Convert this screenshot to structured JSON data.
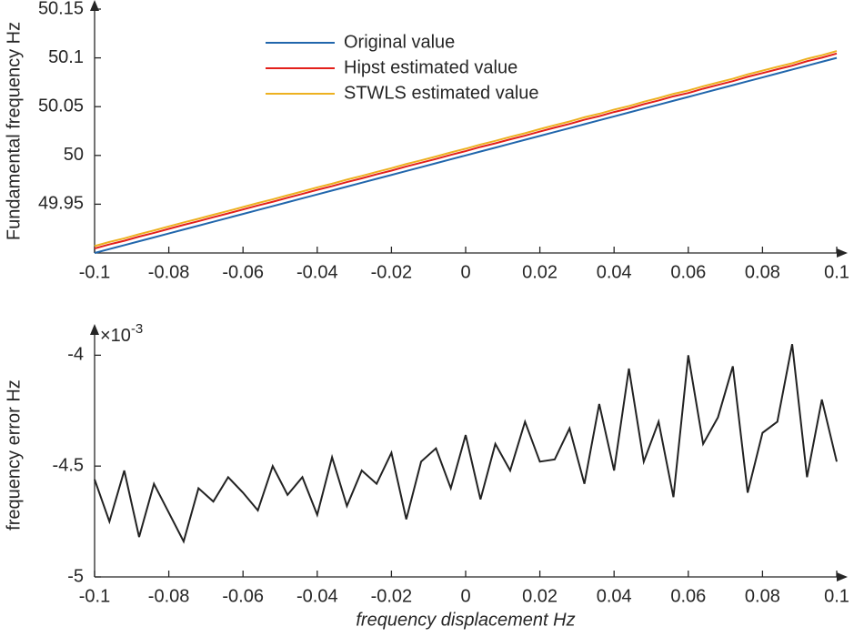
{
  "chart_data": [
    {
      "type": "line",
      "ylabel": "Fundamental frequency Hz",
      "x": [
        -0.1,
        -0.096,
        -0.092,
        -0.088,
        -0.084,
        -0.08,
        -0.076,
        -0.072,
        -0.068,
        -0.064,
        -0.06,
        -0.056,
        -0.052,
        -0.048,
        -0.044,
        -0.04,
        -0.036,
        -0.032,
        -0.028,
        -0.024,
        -0.02,
        -0.016,
        -0.012,
        -0.008,
        -0.004,
        0,
        0.004,
        0.008,
        0.012,
        0.016,
        0.02,
        0.024,
        0.028,
        0.032,
        0.036,
        0.04,
        0.044,
        0.048,
        0.052,
        0.056,
        0.06,
        0.064,
        0.068,
        0.072,
        0.076,
        0.08,
        0.084,
        0.088,
        0.092,
        0.096,
        0.1
      ],
      "series": [
        {
          "name": "Original value",
          "color": "#2166ac",
          "values": [
            49.9,
            49.904,
            49.908,
            49.912,
            49.916,
            49.92,
            49.924,
            49.928,
            49.932,
            49.936,
            49.94,
            49.944,
            49.948,
            49.952,
            49.956,
            49.96,
            49.964,
            49.968,
            49.972,
            49.976,
            49.98,
            49.984,
            49.988,
            49.992,
            49.996,
            50,
            50.004,
            50.008,
            50.012,
            50.016,
            50.02,
            50.024,
            50.028,
            50.032,
            50.036,
            50.04,
            50.044,
            50.048,
            50.052,
            50.056,
            50.06,
            50.064,
            50.068,
            50.072,
            50.076,
            50.08,
            50.084,
            50.088,
            50.092,
            50.096,
            50.1
          ]
        },
        {
          "name": "Hipst estimated value",
          "color": "#e3201b",
          "values": [
            49.9046,
            49.9088,
            49.9125,
            49.9168,
            49.9206,
            49.9247,
            49.9288,
            49.9326,
            49.9367,
            49.9406,
            49.9446,
            49.9487,
            49.9525,
            49.9566,
            49.9606,
            49.9647,
            49.9685,
            49.9727,
            49.9765,
            49.9806,
            49.9844,
            49.9887,
            49.9925,
            49.9964,
            50.0006,
            50.0044,
            50.0087,
            50.0124,
            50.0165,
            50.0203,
            50.0245,
            50.0285,
            50.0323,
            50.0366,
            50.0402,
            50.0445,
            50.0481,
            50.0525,
            50.0563,
            50.0606,
            50.064,
            50.0684,
            50.0723,
            50.0761,
            50.0806,
            50.0844,
            50.0883,
            50.092,
            50.0966,
            50.1002,
            50.1045
          ]
        },
        {
          "name": "STWLS estimated value",
          "color": "#edb120",
          "values": [
            49.9071,
            49.9113,
            49.915,
            49.9193,
            49.9231,
            49.9272,
            49.9313,
            49.9351,
            49.9392,
            49.9431,
            49.9471,
            49.9512,
            49.955,
            49.9591,
            49.9631,
            49.9672,
            49.971,
            49.9752,
            49.979,
            49.9831,
            49.9869,
            49.9912,
            49.995,
            49.9989,
            50.0031,
            50.0069,
            50.0112,
            50.0149,
            50.019,
            50.0228,
            50.027,
            50.031,
            50.0348,
            50.0391,
            50.0427,
            50.047,
            50.0506,
            50.055,
            50.0588,
            50.0631,
            50.0665,
            50.0709,
            50.0748,
            50.0786,
            50.0831,
            50.0869,
            50.0908,
            50.0945,
            50.0991,
            50.1027,
            50.107
          ]
        }
      ],
      "xlim": [
        -0.1,
        0.1
      ],
      "xticks": [
        -0.1,
        -0.08,
        -0.06,
        -0.04,
        -0.02,
        0,
        0.02,
        0.04,
        0.06,
        0.08,
        0.1
      ],
      "ylim": [
        49.9,
        50.15
      ],
      "yticks": [
        49.95,
        50,
        50.05,
        50.1,
        50.15
      ],
      "legend": "upper-center"
    },
    {
      "type": "line",
      "ylabel": "frequency error Hz",
      "xlabel": "frequency displacement Hz",
      "y_multiplier": {
        "base": "×10",
        "exponent": "-3"
      },
      "x": [
        -0.1,
        -0.096,
        -0.092,
        -0.088,
        -0.084,
        -0.08,
        -0.076,
        -0.072,
        -0.068,
        -0.064,
        -0.06,
        -0.056,
        -0.052,
        -0.048,
        -0.044,
        -0.04,
        -0.036,
        -0.032,
        -0.028,
        -0.024,
        -0.02,
        -0.016,
        -0.012,
        -0.008,
        -0.004,
        0,
        0.004,
        0.008,
        0.012,
        0.016,
        0.02,
        0.024,
        0.028,
        0.032,
        0.036,
        0.04,
        0.044,
        0.048,
        0.052,
        0.056,
        0.06,
        0.064,
        0.068,
        0.072,
        0.076,
        0.08,
        0.084,
        0.088,
        0.092,
        0.096,
        0.1
      ],
      "series": [
        {
          "color": "#222222",
          "values": [
            -4.56,
            -4.75,
            -4.52,
            -4.82,
            -4.58,
            -4.71,
            -4.84,
            -4.6,
            -4.66,
            -4.55,
            -4.62,
            -4.7,
            -4.5,
            -4.63,
            -4.55,
            -4.72,
            -4.46,
            -4.68,
            -4.52,
            -4.58,
            -4.44,
            -4.74,
            -4.48,
            -4.42,
            -4.6,
            -4.36,
            -4.65,
            -4.4,
            -4.52,
            -4.3,
            -4.48,
            -4.47,
            -4.33,
            -4.58,
            -4.22,
            -4.52,
            -4.06,
            -4.48,
            -4.3,
            -4.64,
            -4.0,
            -4.4,
            -4.28,
            -4.05,
            -4.62,
            -4.35,
            -4.3,
            -3.95,
            -4.55,
            -4.2,
            -4.48
          ]
        }
      ],
      "xlim": [
        -0.1,
        0.1
      ],
      "xticks": [
        -0.1,
        -0.08,
        -0.06,
        -0.04,
        -0.02,
        0,
        0.02,
        0.04,
        0.06,
        0.08,
        0.1
      ],
      "ylim": [
        -5,
        -3.9
      ],
      "yticks": [
        -5,
        -4.5,
        -4
      ]
    }
  ]
}
